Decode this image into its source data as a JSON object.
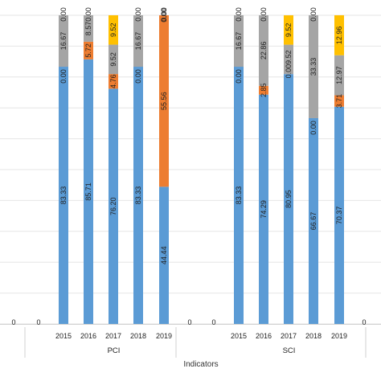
{
  "chart_data": {
    "type": "bar",
    "stacked": true,
    "xlabel": "Indicators",
    "ylim": [
      0,
      100
    ],
    "grid": true,
    "legend": "none",
    "groups": [
      {
        "name": "PCI",
        "lead_zeros": [
          "0",
          "0"
        ],
        "categories": [
          "2015",
          "2016",
          "2017",
          "2018",
          "2019"
        ],
        "segments": [
          {
            "key": "blue",
            "color": "#5b9bd5",
            "values": [
              83.33,
              85.71,
              76.2,
              83.33,
              44.44
            ],
            "labels": [
              "83.33",
              "85.71",
              "76.20",
              "83.33",
              "44.44"
            ]
          },
          {
            "key": "orange",
            "color": "#ed7d31",
            "values": [
              0.0,
              5.72,
              4.76,
              0.0,
              55.56
            ],
            "labels": [
              "0.00",
              "5.72",
              "4.76",
              "0.00",
              "55.56"
            ]
          },
          {
            "key": "gray",
            "color": "#a5a5a5",
            "values": [
              16.67,
              8.57,
              9.52,
              16.67,
              0.0
            ],
            "labels": [
              "16.67",
              "8.57",
              "9.52",
              "16.67",
              "0.00"
            ]
          },
          {
            "key": "yellow",
            "color": "#ffc000",
            "values": [
              0.0,
              0.0,
              9.52,
              0.0,
              0.0
            ],
            "labels": [
              "0.00",
              "0.00",
              "9.52",
              "0.00",
              "0.00"
            ]
          }
        ]
      },
      {
        "name": "SCI",
        "lead_zeros": [
          "0",
          "0"
        ],
        "categories": [
          "2015",
          "2016",
          "2017",
          "2018",
          "2019"
        ],
        "segments": [
          {
            "key": "blue",
            "color": "#5b9bd5",
            "values": [
              83.33,
              74.29,
              80.95,
              66.67,
              70.37
            ],
            "labels": [
              "83.33",
              "74.29",
              "80.95",
              "66.67",
              "70.37"
            ]
          },
          {
            "key": "orange",
            "color": "#ed7d31",
            "values": [
              0.0,
              2.85,
              0.0,
              0.0,
              3.71
            ],
            "labels": [
              "0.00",
              "2.85",
              "0.00",
              "0.00",
              "3.71"
            ]
          },
          {
            "key": "gray",
            "color": "#a5a5a5",
            "values": [
              16.67,
              22.86,
              9.52,
              33.33,
              12.97
            ],
            "labels": [
              "16.67",
              "22.86",
              "9.52",
              "33.33",
              "12.97"
            ]
          },
          {
            "key": "yellow",
            "color": "#ffc000",
            "values": [
              0.0,
              0.0,
              9.52,
              0.0,
              12.96
            ],
            "labels": [
              "0.00",
              "0.00",
              "9.52",
              "0.00",
              "12.96"
            ]
          }
        ]
      }
    ],
    "label_overrides": {
      "SCI-2017": {
        "text": "0.009.52",
        "segment": "orange_gray"
      }
    }
  }
}
